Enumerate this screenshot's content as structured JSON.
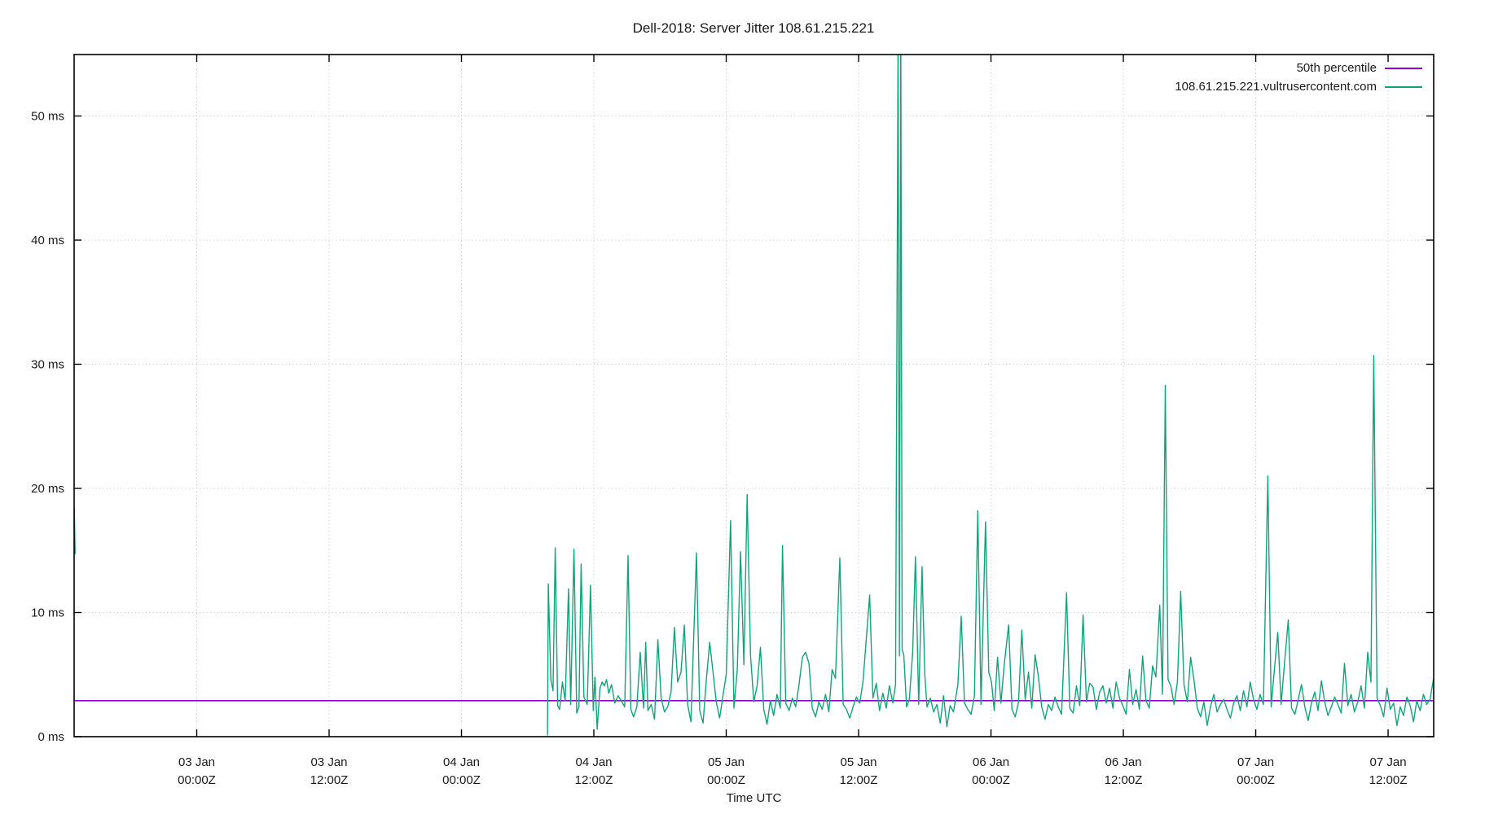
{
  "chart_data": {
    "type": "line",
    "title": "Dell-2018: Server Jitter 108.61.215.221",
    "xlabel": "Time UTC",
    "y_unit": "ms",
    "x_unit": "hours since 03 Jan 00:00Z",
    "ylim": [
      0,
      55
    ],
    "xlim": [
      -11.1,
      112.1
    ],
    "grid": true,
    "legend_position": "top-right-inside",
    "colors": {
      "percentile_line": "#9400d3",
      "host_line": "#0fa578",
      "grid": "#c0c0c0",
      "axis": "#000000",
      "text": "#1a1a1a"
    },
    "y_ticks": [
      {
        "v": 0,
        "label": "0 ms"
      },
      {
        "v": 10,
        "label": "10 ms"
      },
      {
        "v": 20,
        "label": "20 ms"
      },
      {
        "v": 30,
        "label": "30 ms"
      },
      {
        "v": 40,
        "label": "40 ms"
      },
      {
        "v": 50,
        "label": "50 ms"
      }
    ],
    "x_ticks": [
      {
        "t": 0,
        "day": "03 Jan",
        "time": "00:00Z"
      },
      {
        "t": 12,
        "day": "03 Jan",
        "time": "12:00Z"
      },
      {
        "t": 24,
        "day": "04 Jan",
        "time": "00:00Z"
      },
      {
        "t": 36,
        "day": "04 Jan",
        "time": "12:00Z"
      },
      {
        "t": 48,
        "day": "05 Jan",
        "time": "00:00Z"
      },
      {
        "t": 60,
        "day": "05 Jan",
        "time": "12:00Z"
      },
      {
        "t": 72,
        "day": "06 Jan",
        "time": "00:00Z"
      },
      {
        "t": 84,
        "day": "06 Jan",
        "time": "12:00Z"
      },
      {
        "t": 96,
        "day": "07 Jan",
        "time": "00:00Z"
      },
      {
        "t": 108,
        "day": "07 Jan",
        "time": "12:00Z"
      }
    ],
    "series": [
      {
        "name": "50th percentile",
        "color": "#9400d3",
        "style": "hline",
        "value": 2.9
      },
      {
        "name": "108.61.215.221.vultrusercontent.com",
        "color": "#0fa578",
        "style": "line",
        "points": [
          [
            -11.1,
            18.4
          ],
          [
            -11.02,
            14.7
          ],
          null,
          [
            31.8,
            0.1
          ],
          [
            31.87,
            12.3
          ],
          [
            32.1,
            4.6
          ],
          [
            32.3,
            3.7
          ],
          [
            32.5,
            15.2
          ],
          [
            32.72,
            2.5
          ],
          [
            32.9,
            2.2
          ],
          [
            33.15,
            4.4
          ],
          [
            33.4,
            2.9
          ],
          [
            33.7,
            11.9
          ],
          [
            33.9,
            2.6
          ],
          [
            34.2,
            15.1
          ],
          [
            34.45,
            1.9
          ],
          [
            34.65,
            2.4
          ],
          [
            34.85,
            13.9
          ],
          [
            35.1,
            3.2
          ],
          [
            35.4,
            2.6
          ],
          [
            35.7,
            12.2
          ],
          [
            35.95,
            2.1
          ],
          [
            36.1,
            4.8
          ],
          [
            36.3,
            0.6
          ],
          [
            36.55,
            3.9
          ],
          [
            36.75,
            4.4
          ],
          [
            36.95,
            4.1
          ],
          [
            37.15,
            4.6
          ],
          [
            37.35,
            3.5
          ],
          [
            37.6,
            4.2
          ],
          [
            37.9,
            2.7
          ],
          [
            38.2,
            3.3
          ],
          [
            38.55,
            2.8
          ],
          [
            38.8,
            2.4
          ],
          [
            39.1,
            14.6
          ],
          [
            39.35,
            2.2
          ],
          [
            39.6,
            1.6
          ],
          [
            39.9,
            2.4
          ],
          [
            40.2,
            6.8
          ],
          [
            40.5,
            2.3
          ],
          [
            40.7,
            7.6
          ],
          [
            40.9,
            2.1
          ],
          [
            41.2,
            2.6
          ],
          [
            41.5,
            1.4
          ],
          [
            41.8,
            7.8
          ],
          [
            42.1,
            3.1
          ],
          [
            42.4,
            2.0
          ],
          [
            42.7,
            2.4
          ],
          [
            43.0,
            3.6
          ],
          [
            43.3,
            8.8
          ],
          [
            43.6,
            4.4
          ],
          [
            43.9,
            5.2
          ],
          [
            44.2,
            9.0
          ],
          [
            44.5,
            2.6
          ],
          [
            44.8,
            1.2
          ],
          [
            45.3,
            14.8
          ],
          [
            45.6,
            2.1
          ],
          [
            45.9,
            1.1
          ],
          [
            46.2,
            4.6
          ],
          [
            46.5,
            7.6
          ],
          [
            46.8,
            5.2
          ],
          [
            47.1,
            2.8
          ],
          [
            47.4,
            1.5
          ],
          [
            47.7,
            3.3
          ],
          [
            48.0,
            5.0
          ],
          [
            48.4,
            17.4
          ],
          [
            48.7,
            2.3
          ],
          [
            49.0,
            5.4
          ],
          [
            49.3,
            14.9
          ],
          [
            49.6,
            5.8
          ],
          [
            49.9,
            19.5
          ],
          [
            50.2,
            6.6
          ],
          [
            50.5,
            2.8
          ],
          [
            50.8,
            4.1
          ],
          [
            51.1,
            7.2
          ],
          [
            51.4,
            2.2
          ],
          [
            51.7,
            1.0
          ],
          [
            52.0,
            2.9
          ],
          [
            52.3,
            1.7
          ],
          [
            52.6,
            3.4
          ],
          [
            52.9,
            2.3
          ],
          [
            53.1,
            15.4
          ],
          [
            53.4,
            2.7
          ],
          [
            53.7,
            2.1
          ],
          [
            54.0,
            3.1
          ],
          [
            54.3,
            2.4
          ],
          [
            54.6,
            4.2
          ],
          [
            54.9,
            6.4
          ],
          [
            55.2,
            6.8
          ],
          [
            55.5,
            5.9
          ],
          [
            55.8,
            2.3
          ],
          [
            56.1,
            1.6
          ],
          [
            56.4,
            2.8
          ],
          [
            56.7,
            2.2
          ],
          [
            57.0,
            3.4
          ],
          [
            57.3,
            2.0
          ],
          [
            57.6,
            5.4
          ],
          [
            57.9,
            4.7
          ],
          [
            58.3,
            14.4
          ],
          [
            58.6,
            2.6
          ],
          [
            58.9,
            2.2
          ],
          [
            59.2,
            1.5
          ],
          [
            59.5,
            2.4
          ],
          [
            59.8,
            3.2
          ],
          [
            60.1,
            2.7
          ],
          [
            60.4,
            4.4
          ],
          [
            61.0,
            11.4
          ],
          [
            61.3,
            3.1
          ],
          [
            61.6,
            4.3
          ],
          [
            61.9,
            2.1
          ],
          [
            62.2,
            3.5
          ],
          [
            62.5,
            2.3
          ],
          [
            62.8,
            4.1
          ],
          [
            63.1,
            2.7
          ],
          [
            63.35,
            4.2
          ],
          [
            63.58,
            57
          ],
          [
            63.7,
            6.5
          ],
          [
            63.82,
            57
          ],
          [
            63.95,
            7.0
          ],
          [
            64.1,
            6.6
          ],
          [
            64.35,
            2.4
          ],
          [
            64.6,
            3.0
          ],
          [
            64.9,
            6.8
          ],
          [
            65.15,
            14.5
          ],
          [
            65.45,
            2.6
          ],
          [
            65.75,
            13.7
          ],
          [
            66.0,
            5.0
          ],
          [
            66.2,
            2.4
          ],
          [
            66.5,
            3.1
          ],
          [
            66.8,
            2.0
          ],
          [
            67.1,
            2.6
          ],
          [
            67.4,
            1.1
          ],
          [
            67.7,
            3.3
          ],
          [
            68.0,
            0.8
          ],
          [
            68.3,
            2.5
          ],
          [
            68.6,
            2.0
          ],
          [
            69.0,
            4.2
          ],
          [
            69.3,
            9.7
          ],
          [
            69.6,
            2.7
          ],
          [
            69.9,
            2.2
          ],
          [
            70.2,
            1.8
          ],
          [
            70.5,
            3.3
          ],
          [
            70.8,
            18.2
          ],
          [
            71.1,
            2.6
          ],
          [
            71.5,
            17.3
          ],
          [
            71.8,
            5.2
          ],
          [
            72.05,
            4.4
          ],
          [
            72.3,
            2.1
          ],
          [
            72.6,
            6.4
          ],
          [
            72.9,
            2.7
          ],
          [
            73.2,
            5.8
          ],
          [
            73.6,
            9.0
          ],
          [
            73.9,
            2.2
          ],
          [
            74.2,
            1.6
          ],
          [
            74.5,
            2.8
          ],
          [
            74.8,
            8.6
          ],
          [
            75.1,
            3.0
          ],
          [
            75.4,
            5.2
          ],
          [
            75.7,
            2.3
          ],
          [
            76.0,
            6.6
          ],
          [
            76.3,
            4.8
          ],
          [
            76.6,
            2.4
          ],
          [
            76.9,
            1.4
          ],
          [
            77.2,
            2.6
          ],
          [
            77.5,
            2.1
          ],
          [
            77.8,
            3.2
          ],
          [
            78.1,
            2.4
          ],
          [
            78.4,
            1.8
          ],
          [
            78.85,
            11.6
          ],
          [
            79.15,
            2.3
          ],
          [
            79.45,
            1.9
          ],
          [
            79.75,
            4.1
          ],
          [
            80.05,
            2.5
          ],
          [
            80.35,
            9.8
          ],
          [
            80.65,
            2.8
          ],
          [
            80.95,
            4.3
          ],
          [
            81.25,
            4.0
          ],
          [
            81.55,
            2.2
          ],
          [
            81.85,
            3.6
          ],
          [
            82.15,
            4.1
          ],
          [
            82.45,
            2.7
          ],
          [
            82.75,
            3.9
          ],
          [
            83.05,
            2.3
          ],
          [
            83.35,
            4.4
          ],
          [
            83.65,
            3.1
          ],
          [
            83.95,
            2.5
          ],
          [
            84.25,
            1.8
          ],
          [
            84.55,
            5.4
          ],
          [
            84.85,
            2.6
          ],
          [
            85.15,
            3.8
          ],
          [
            85.45,
            2.2
          ],
          [
            85.75,
            6.5
          ],
          [
            86.05,
            2.9
          ],
          [
            86.35,
            2.3
          ],
          [
            86.65,
            5.7
          ],
          [
            86.95,
            4.8
          ],
          [
            87.3,
            10.6
          ],
          [
            87.55,
            3.4
          ],
          [
            87.8,
            28.3
          ],
          [
            88.05,
            4.6
          ],
          [
            88.3,
            4.1
          ],
          [
            88.6,
            2.6
          ],
          [
            88.9,
            4.4
          ],
          [
            89.2,
            11.7
          ],
          [
            89.5,
            4.2
          ],
          [
            89.8,
            2.8
          ],
          [
            90.1,
            6.4
          ],
          [
            90.4,
            4.6
          ],
          [
            90.7,
            2.3
          ],
          [
            91.0,
            1.6
          ],
          [
            91.3,
            2.8
          ],
          [
            91.6,
            0.9
          ],
          [
            91.9,
            2.4
          ],
          [
            92.2,
            3.4
          ],
          [
            92.5,
            2.0
          ],
          [
            92.8,
            2.6
          ],
          [
            93.1,
            3.0
          ],
          [
            93.4,
            2.2
          ],
          [
            93.7,
            1.5
          ],
          [
            94.0,
            2.7
          ],
          [
            94.3,
            3.3
          ],
          [
            94.6,
            2.1
          ],
          [
            94.9,
            3.7
          ],
          [
            95.2,
            2.4
          ],
          [
            95.5,
            4.4
          ],
          [
            95.8,
            3.0
          ],
          [
            96.1,
            2.2
          ],
          [
            96.4,
            3.4
          ],
          [
            96.7,
            2.6
          ],
          [
            97.1,
            21.0
          ],
          [
            97.4,
            2.4
          ],
          [
            97.7,
            5.5
          ],
          [
            98.0,
            8.4
          ],
          [
            98.3,
            2.6
          ],
          [
            98.6,
            5.8
          ],
          [
            98.95,
            9.4
          ],
          [
            99.25,
            2.3
          ],
          [
            99.55,
            1.8
          ],
          [
            99.85,
            3.0
          ],
          [
            100.15,
            4.2
          ],
          [
            100.45,
            2.4
          ],
          [
            100.75,
            1.3
          ],
          [
            101.05,
            2.7
          ],
          [
            101.35,
            3.6
          ],
          [
            101.65,
            2.1
          ],
          [
            101.95,
            4.5
          ],
          [
            102.25,
            2.8
          ],
          [
            102.55,
            1.7
          ],
          [
            102.85,
            2.4
          ],
          [
            103.15,
            3.2
          ],
          [
            103.45,
            2.6
          ],
          [
            103.75,
            1.9
          ],
          [
            104.05,
            5.9
          ],
          [
            104.35,
            2.5
          ],
          [
            104.65,
            3.4
          ],
          [
            104.95,
            2.0
          ],
          [
            105.25,
            2.8
          ],
          [
            105.55,
            4.1
          ],
          [
            105.85,
            2.3
          ],
          [
            106.15,
            6.8
          ],
          [
            106.45,
            4.4
          ],
          [
            106.7,
            30.7
          ],
          [
            107.0,
            3.1
          ],
          [
            107.3,
            2.5
          ],
          [
            107.6,
            1.6
          ],
          [
            107.9,
            3.9
          ],
          [
            108.2,
            2.2
          ],
          [
            108.5,
            2.7
          ],
          [
            108.8,
            0.9
          ],
          [
            109.1,
            2.4
          ],
          [
            109.4,
            1.7
          ],
          [
            109.7,
            3.2
          ],
          [
            110.0,
            2.5
          ],
          [
            110.3,
            1.2
          ],
          [
            110.6,
            2.9
          ],
          [
            110.9,
            2.1
          ],
          [
            111.2,
            3.4
          ],
          [
            111.5,
            2.6
          ],
          [
            111.8,
            3.0
          ],
          [
            112.1,
            4.6
          ]
        ]
      }
    ]
  }
}
